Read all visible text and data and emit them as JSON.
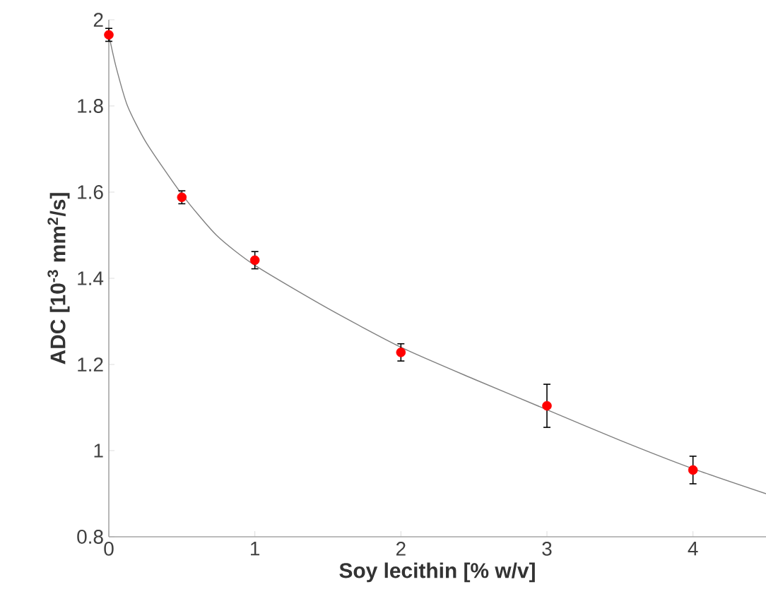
{
  "chart_data": {
    "type": "scatter",
    "xlabel": "Soy lecithin [% w/v]",
    "ylabel": "ADC [10$^{-3}$ mm$^{2}$/s]",
    "xlim": [
      0,
      4.5
    ],
    "ylim": [
      0.8,
      2
    ],
    "xticks": [
      0,
      1,
      2,
      3,
      4
    ],
    "yticks": [
      0.8,
      1,
      1.2,
      1.4,
      1.6,
      1.8,
      2
    ],
    "series": [
      {
        "type": "line",
        "color": "#808080",
        "marker": "none",
        "x": [
          0,
          0.05,
          0.128,
          0.256,
          0.5,
          0.737,
          1,
          1.5,
          2,
          2.5,
          3,
          3.5,
          4,
          4.5
        ],
        "values": [
          1.965,
          1.89,
          1.8,
          1.715,
          1.595,
          1.5,
          1.43,
          1.33,
          1.24,
          1.166,
          1.095,
          1.024,
          0.958,
          0.9
        ]
      },
      {
        "color": "#ff0000",
        "marker": "circle",
        "x": [
          0,
          0.5,
          1,
          2,
          3,
          4
        ],
        "values": [
          1.965,
          1.588,
          1.442,
          1.228,
          1.104,
          0.955
        ],
        "errors": [
          0.015,
          0.015,
          0.02,
          0.02,
          0.05,
          0.032
        ]
      }
    ]
  }
}
